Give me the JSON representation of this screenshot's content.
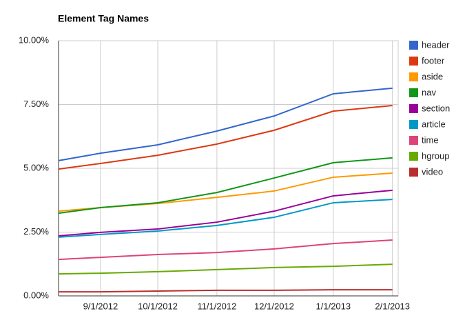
{
  "chart_data": {
    "type": "line",
    "title": "Element Tag Names",
    "x": [
      "8/10/2012",
      "9/1/2012",
      "10/1/2012",
      "11/1/2012",
      "12/1/2012",
      "1/1/2013",
      "2/1/2013"
    ],
    "xlim": [
      "8/10/2012",
      "2/4/2013"
    ],
    "xticks": [
      "9/1/2012",
      "10/1/2012",
      "11/1/2012",
      "12/1/2012",
      "1/1/2013",
      "2/1/2013"
    ],
    "ylim": [
      0,
      10
    ],
    "yticks": [
      {
        "value": 0,
        "label": "0.00%"
      },
      {
        "value": 2.5,
        "label": "2.50%"
      },
      {
        "value": 5,
        "label": "5.00%"
      },
      {
        "value": 7.5,
        "label": "7.50%"
      },
      {
        "value": 10,
        "label": "10.00%"
      }
    ],
    "grid": true,
    "legend": "right",
    "series": [
      {
        "name": "header",
        "color": "#3366cc",
        "values": [
          5.3,
          5.59,
          5.92,
          6.46,
          7.05,
          7.92,
          8.14
        ]
      },
      {
        "name": "footer",
        "color": "#dc3912",
        "values": [
          4.97,
          5.19,
          5.51,
          5.95,
          6.49,
          7.24,
          7.46
        ]
      },
      {
        "name": "aside",
        "color": "#ff9900",
        "values": [
          3.32,
          3.46,
          3.62,
          3.86,
          4.11,
          4.65,
          4.81
        ]
      },
      {
        "name": "nav",
        "color": "#109618",
        "values": [
          3.24,
          3.46,
          3.65,
          4.05,
          4.62,
          5.22,
          5.41
        ]
      },
      {
        "name": "section",
        "color": "#990099",
        "values": [
          2.35,
          2.49,
          2.62,
          2.89,
          3.32,
          3.92,
          4.14
        ]
      },
      {
        "name": "article",
        "color": "#0099c6",
        "values": [
          2.3,
          2.41,
          2.54,
          2.76,
          3.08,
          3.65,
          3.78
        ]
      },
      {
        "name": "time",
        "color": "#dd4477",
        "values": [
          1.43,
          1.51,
          1.62,
          1.7,
          1.84,
          2.05,
          2.19
        ]
      },
      {
        "name": "hgroup",
        "color": "#66aa00",
        "values": [
          0.86,
          0.89,
          0.95,
          1.03,
          1.11,
          1.16,
          1.24
        ]
      },
      {
        "name": "video",
        "color": "#b82e2e",
        "values": [
          0.16,
          0.16,
          0.19,
          0.22,
          0.22,
          0.24,
          0.24
        ]
      }
    ]
  }
}
